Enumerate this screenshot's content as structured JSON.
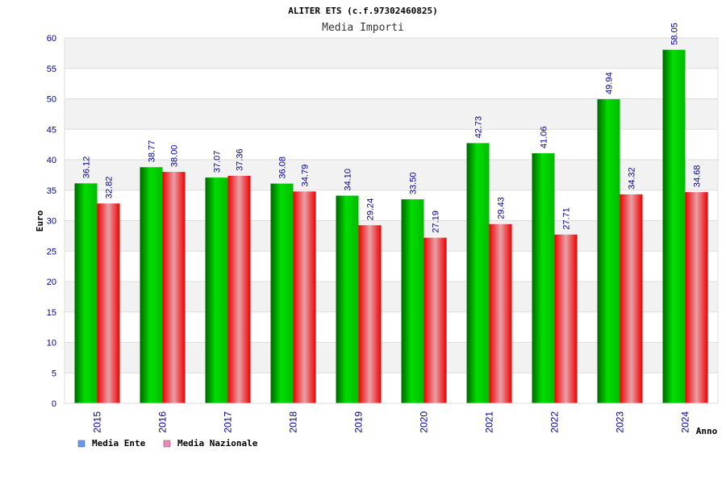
{
  "chart_data": {
    "type": "bar",
    "title": "ALITER ETS (c.f.97302460825)",
    "subtitle": "Media Importi",
    "xlabel": "Anno",
    "ylabel": "Euro",
    "ylim": [
      0,
      60
    ],
    "yticks": [
      0,
      5,
      10,
      15,
      20,
      25,
      30,
      35,
      40,
      45,
      50,
      55,
      60
    ],
    "grid": true,
    "legend_position": "bottom-left",
    "categories": [
      "2015",
      "2016",
      "2017",
      "2018",
      "2019",
      "2020",
      "2021",
      "2022",
      "2023",
      "2024"
    ],
    "series": [
      {
        "name": "Media Ente",
        "values": [
          36.12,
          38.77,
          37.07,
          36.08,
          34.1,
          33.5,
          42.73,
          41.06,
          49.94,
          58.05
        ],
        "labels": [
          "36.12",
          "38.77",
          "37.07",
          "36.08",
          "34.10",
          "33.50",
          "42.73",
          "41.06",
          "49.94",
          "58.05"
        ],
        "color": "#00aa00",
        "legend_color": "#6699ee"
      },
      {
        "name": "Media Nazionale",
        "values": [
          32.82,
          38.0,
          37.36,
          34.79,
          29.24,
          27.19,
          29.43,
          27.71,
          34.32,
          34.68
        ],
        "labels": [
          "32.82",
          "38.00",
          "37.36",
          "34.79",
          "29.24",
          "27.19",
          "29.43",
          "27.71",
          "34.32",
          "34.68"
        ],
        "color": "#ee1111",
        "legend_color": "#ee88bb"
      }
    ]
  }
}
